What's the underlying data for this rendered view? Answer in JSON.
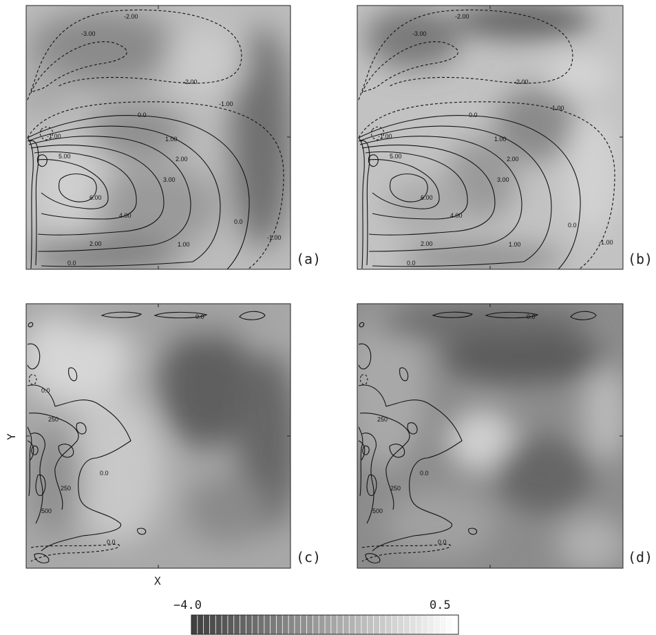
{
  "chart_data": [
    {
      "type": "heatmap",
      "panel_tag": "(a)",
      "contours": [
        {
          "value": -3.0,
          "label": "-3.00"
        },
        {
          "value": -2.0,
          "label": "-2.00"
        },
        {
          "value": -1.0,
          "label": "-1.00"
        },
        {
          "value": 0.0,
          "label": "0.0"
        },
        {
          "value": 1.0,
          "label": "1.00"
        },
        {
          "value": 2.0,
          "label": "2.00"
        },
        {
          "value": 3.0,
          "label": "3.00"
        },
        {
          "value": 4.0,
          "label": "4.00"
        },
        {
          "value": 5.0,
          "label": "5.00"
        },
        {
          "value": 6.0,
          "label": "6.00"
        }
      ]
    },
    {
      "type": "heatmap",
      "panel_tag": "(b)",
      "contours": [
        {
          "value": -3.0,
          "label": "-3.00"
        },
        {
          "value": -2.0,
          "label": "-2.00"
        },
        {
          "value": -1.0,
          "label": "-1.00"
        },
        {
          "value": 0.0,
          "label": "0.0"
        },
        {
          "value": 1.0,
          "label": "1.00"
        },
        {
          "value": 2.0,
          "label": "2.00"
        },
        {
          "value": 3.0,
          "label": "3.00"
        },
        {
          "value": 4.0,
          "label": "4.00"
        },
        {
          "value": 5.0,
          "label": "5.00"
        },
        {
          "value": 6.0,
          "label": "6.00"
        }
      ]
    },
    {
      "type": "heatmap",
      "panel_tag": "(c)",
      "xlabel": "X",
      "ylabel": "Y",
      "contours": [
        {
          "value": 0.0,
          "label": "0.0"
        },
        {
          "value": 250,
          "label": "250"
        },
        {
          "value": 500,
          "label": "500"
        }
      ]
    },
    {
      "type": "heatmap",
      "panel_tag": "(d)",
      "contours": [
        {
          "value": 0.0,
          "label": "0.0"
        },
        {
          "value": 250,
          "label": "250"
        },
        {
          "value": 500,
          "label": "500"
        }
      ]
    }
  ],
  "colorbar": {
    "min_label": "−4.0",
    "max_label": "0.5",
    "min": -4.0,
    "max": 0.5,
    "colors": [
      "#404040",
      "#ffffff"
    ]
  }
}
